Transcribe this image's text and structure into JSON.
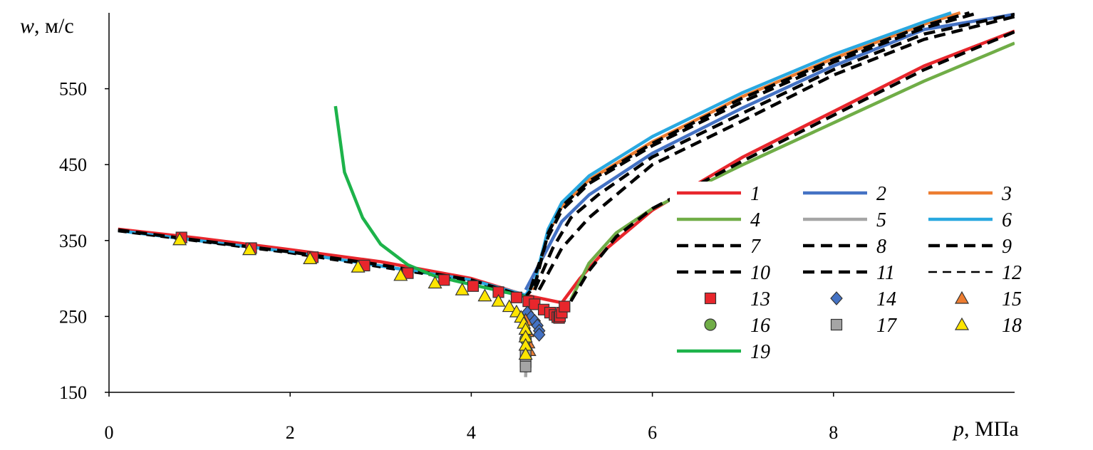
{
  "chart_data": {
    "type": "line",
    "ylabel_var": "w",
    "ylabel_unit": ", м/с",
    "xlabel_var": "p",
    "xlabel_unit": ", МПа",
    "xlim": [
      0,
      10
    ],
    "ylim": [
      150,
      650
    ],
    "x_ticks": [
      0,
      2,
      4,
      6,
      8
    ],
    "y_ticks": [
      150,
      250,
      350,
      450,
      550
    ],
    "legend_position": "right",
    "series": [
      {
        "name": "1",
        "style": "solid",
        "color": "#e8262c",
        "width": 4.5,
        "points": [
          [
            0.1,
            365
          ],
          [
            1,
            353
          ],
          [
            2,
            338
          ],
          [
            3,
            322
          ],
          [
            4,
            300
          ],
          [
            4.6,
            278
          ],
          [
            5,
            268
          ],
          [
            5.2,
            300
          ],
          [
            5.5,
            340
          ],
          [
            6,
            390
          ],
          [
            7,
            460
          ],
          [
            8,
            520
          ],
          [
            9,
            580
          ],
          [
            10,
            626
          ]
        ]
      },
      {
        "name": "2",
        "style": "solid",
        "color": "#4472c4",
        "width": 4.5,
        "points": [
          [
            4.6,
            285
          ],
          [
            4.8,
            330
          ],
          [
            5,
            375
          ],
          [
            5.3,
            410
          ],
          [
            6,
            465
          ],
          [
            7,
            525
          ],
          [
            8,
            580
          ],
          [
            9,
            628
          ],
          [
            10,
            648
          ]
        ]
      },
      {
        "name": "3",
        "style": "solid",
        "color": "#ed7d31",
        "width": 4.5,
        "points": [
          [
            4.68,
            285
          ],
          [
            4.85,
            360
          ],
          [
            5,
            395
          ],
          [
            5.3,
            430
          ],
          [
            6,
            480
          ],
          [
            7,
            540
          ],
          [
            8,
            590
          ],
          [
            9,
            635
          ],
          [
            9.4,
            650
          ]
        ]
      },
      {
        "name": "4",
        "style": "solid",
        "color": "#70ad47",
        "width": 4.5,
        "points": [
          [
            5.1,
            272
          ],
          [
            5.3,
            320
          ],
          [
            5.6,
            360
          ],
          [
            6,
            392
          ],
          [
            7,
            450
          ],
          [
            8,
            505
          ],
          [
            9,
            560
          ],
          [
            10,
            610
          ]
        ]
      },
      {
        "name": "5",
        "style": "solid",
        "color": "#a5a5a5",
        "width": 4.5,
        "points": [
          [
            4.6,
            170
          ],
          [
            4.62,
            230
          ],
          [
            4.65,
            275
          ]
        ]
      },
      {
        "name": "6",
        "style": "solid",
        "color": "#29a8e0",
        "width": 4.5,
        "points": [
          [
            0.1,
            363
          ],
          [
            2,
            335
          ],
          [
            4,
            298
          ],
          [
            4.6,
            278
          ],
          [
            4.7,
            295
          ],
          [
            4.85,
            365
          ],
          [
            5,
            400
          ],
          [
            5.3,
            435
          ],
          [
            6,
            487
          ],
          [
            7,
            545
          ],
          [
            8,
            595
          ],
          [
            9,
            638
          ],
          [
            9.3,
            650
          ]
        ]
      },
      {
        "name": "7",
        "style": "dash-bold",
        "color": "#000000",
        "width": 4.5,
        "points": [
          [
            0.1,
            364
          ],
          [
            1,
            350
          ],
          [
            2,
            335
          ],
          [
            3,
            318
          ],
          [
            4,
            298
          ],
          [
            4.6,
            276
          ],
          [
            4.7,
            290
          ],
          [
            4.85,
            360
          ],
          [
            5,
            395
          ],
          [
            5.3,
            428
          ],
          [
            6,
            478
          ],
          [
            7,
            538
          ],
          [
            8,
            588
          ],
          [
            9,
            633
          ],
          [
            9.5,
            650
          ]
        ]
      },
      {
        "name": "8",
        "style": "dash-bold",
        "color": "#000000",
        "width": 4.5,
        "points": [
          [
            4.65,
            285
          ],
          [
            4.85,
            355
          ],
          [
            5,
            390
          ],
          [
            5.3,
            425
          ],
          [
            6,
            475
          ],
          [
            7,
            533
          ],
          [
            8,
            585
          ],
          [
            9,
            630
          ],
          [
            9.6,
            650
          ]
        ]
      },
      {
        "name": "9",
        "style": "dash-bold",
        "color": "#000000",
        "width": 4.5,
        "points": [
          [
            4.7,
            285
          ],
          [
            4.9,
            340
          ],
          [
            5.1,
            380
          ],
          [
            5.4,
            410
          ],
          [
            6,
            460
          ],
          [
            7,
            518
          ],
          [
            8,
            575
          ],
          [
            9,
            622
          ],
          [
            10,
            648
          ]
        ]
      },
      {
        "name": "10",
        "style": "dash-bold",
        "color": "#000000",
        "width": 4.5,
        "points": [
          [
            4.75,
            285
          ],
          [
            5,
            340
          ],
          [
            5.3,
            380
          ],
          [
            6,
            450
          ],
          [
            7,
            508
          ],
          [
            8,
            568
          ],
          [
            9,
            615
          ],
          [
            10,
            645
          ]
        ]
      },
      {
        "name": "11",
        "style": "dash-bold",
        "color": "#000000",
        "width": 4.5,
        "points": [
          [
            5.1,
            270
          ],
          [
            5.3,
            310
          ],
          [
            5.6,
            355
          ],
          [
            6,
            392
          ],
          [
            7,
            455
          ],
          [
            8,
            515
          ],
          [
            9,
            575
          ],
          [
            10,
            625
          ]
        ]
      },
      {
        "name": "12",
        "style": "dash-thin",
        "color": "#000000",
        "width": 2.5,
        "points": [
          [
            0.1,
            362
          ],
          [
            2,
            333
          ],
          [
            4,
            296
          ],
          [
            4.6,
            272
          ]
        ]
      },
      {
        "name": "19",
        "style": "solid",
        "color": "#1db34a",
        "width": 4.5,
        "points": [
          [
            2.5,
            527
          ],
          [
            2.6,
            440
          ],
          [
            2.8,
            380
          ],
          [
            3,
            345
          ],
          [
            3.3,
            318
          ],
          [
            3.6,
            303
          ],
          [
            4,
            292
          ],
          [
            4.6,
            276
          ]
        ]
      }
    ],
    "markers": [
      {
        "name": "13",
        "shape": "square",
        "fill": "#e8262c",
        "points": [
          [
            0.8,
            354
          ],
          [
            1.57,
            340
          ],
          [
            2.25,
            328
          ],
          [
            2.82,
            317
          ],
          [
            3.3,
            307
          ],
          [
            3.7,
            298
          ],
          [
            4.02,
            290
          ],
          [
            4.3,
            282
          ],
          [
            4.5,
            275
          ],
          [
            4.63,
            270
          ],
          [
            4.7,
            266
          ],
          [
            4.8,
            259
          ],
          [
            4.87,
            255
          ],
          [
            4.92,
            252
          ],
          [
            4.95,
            249
          ],
          [
            4.97,
            248
          ],
          [
            4.98,
            250
          ],
          [
            5.0,
            255
          ],
          [
            5.03,
            263
          ]
        ]
      },
      {
        "name": "14",
        "shape": "diamond",
        "fill": "#4472c4",
        "points": [
          [
            4.62,
            255
          ],
          [
            4.66,
            249
          ],
          [
            4.7,
            244
          ],
          [
            4.73,
            238
          ],
          [
            4.75,
            231
          ],
          [
            4.75,
            226
          ]
        ]
      },
      {
        "name": "15",
        "shape": "triangle",
        "fill": "#ed7d31",
        "points": [
          [
            4.6,
            245
          ],
          [
            4.62,
            230
          ],
          [
            4.63,
            215
          ],
          [
            4.64,
            205
          ]
        ]
      },
      {
        "name": "16",
        "shape": "circle",
        "fill": "#70ad47",
        "points": [
          [
            4.6,
            220
          ]
        ]
      },
      {
        "name": "17",
        "shape": "square",
        "fill": "#a5a5a5",
        "points": [
          [
            4.6,
            200
          ],
          [
            4.6,
            190
          ],
          [
            4.6,
            184
          ]
        ]
      },
      {
        "name": "18",
        "shape": "triangle",
        "fill": "#ffe500",
        "points": [
          [
            0.78,
            351
          ],
          [
            1.55,
            338
          ],
          [
            2.22,
            326
          ],
          [
            2.75,
            315
          ],
          [
            3.22,
            304
          ],
          [
            3.6,
            294
          ],
          [
            3.9,
            285
          ],
          [
            4.15,
            277
          ],
          [
            4.3,
            270
          ],
          [
            4.42,
            263
          ],
          [
            4.5,
            256
          ],
          [
            4.55,
            249
          ],
          [
            4.58,
            241
          ],
          [
            4.6,
            233
          ],
          [
            4.6,
            223
          ],
          [
            4.6,
            212
          ],
          [
            4.6,
            200
          ]
        ]
      }
    ],
    "legend_items": [
      {
        "label": "1",
        "kind": "line",
        "style": "solid",
        "color": "#e8262c"
      },
      {
        "label": "2",
        "kind": "line",
        "style": "solid",
        "color": "#4472c4"
      },
      {
        "label": "3",
        "kind": "line",
        "style": "solid",
        "color": "#ed7d31"
      },
      {
        "label": "4",
        "kind": "line",
        "style": "solid",
        "color": "#70ad47"
      },
      {
        "label": "5",
        "kind": "line",
        "style": "solid",
        "color": "#a5a5a5"
      },
      {
        "label": "6",
        "kind": "line",
        "style": "solid",
        "color": "#29a8e0"
      },
      {
        "label": "7",
        "kind": "line",
        "style": "dash-bold",
        "color": "#000000"
      },
      {
        "label": "8",
        "kind": "line",
        "style": "dash-bold",
        "color": "#000000"
      },
      {
        "label": "9",
        "kind": "line",
        "style": "dash-bold",
        "color": "#000000"
      },
      {
        "label": "10",
        "kind": "line",
        "style": "dash-bold",
        "color": "#000000"
      },
      {
        "label": "11",
        "kind": "line",
        "style": "dash-bold",
        "color": "#000000"
      },
      {
        "label": "12",
        "kind": "line",
        "style": "dash-thin",
        "color": "#000000"
      },
      {
        "label": "13",
        "kind": "marker",
        "shape": "square",
        "fill": "#e8262c"
      },
      {
        "label": "14",
        "kind": "marker",
        "shape": "diamond",
        "fill": "#4472c4"
      },
      {
        "label": "15",
        "kind": "marker",
        "shape": "triangle",
        "fill": "#ed7d31"
      },
      {
        "label": "16",
        "kind": "marker",
        "shape": "circle",
        "fill": "#70ad47"
      },
      {
        "label": "17",
        "kind": "marker",
        "shape": "square",
        "fill": "#a5a5a5"
      },
      {
        "label": "18",
        "kind": "marker",
        "shape": "triangle",
        "fill": "#ffe500"
      },
      {
        "label": "19",
        "kind": "line",
        "style": "solid",
        "color": "#1db34a"
      }
    ]
  }
}
